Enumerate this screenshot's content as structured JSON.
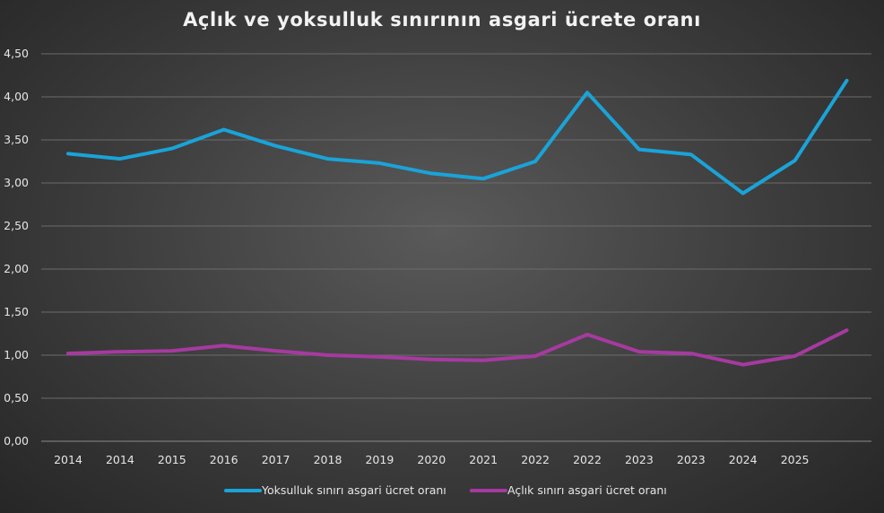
{
  "chart_data": {
    "type": "line",
    "title": "Açlık ve yoksulluk sınırının asgari ücrete oranı",
    "xlabel": "",
    "ylabel": "",
    "ylim": [
      0,
      4.5
    ],
    "y_ticks": [
      "0,00",
      "0,50",
      "1,00",
      "1,50",
      "2,00",
      "2,50",
      "3,00",
      "3,50",
      "4,00",
      "4,50"
    ],
    "categories": [
      "2014",
      "2014",
      "2015",
      "2016",
      "2017",
      "2018",
      "2019",
      "2020",
      "2021",
      "2022",
      "2022",
      "2023",
      "2023",
      "2024",
      "2025",
      ""
    ],
    "grid": true,
    "legend_position": "bottom",
    "series": [
      {
        "name": "Yoksulluk sınırı asgari ücret oranı",
        "color": "#1aa3d8",
        "values": [
          3.34,
          3.28,
          3.4,
          3.62,
          3.43,
          3.28,
          3.23,
          3.11,
          3.05,
          3.25,
          4.05,
          3.39,
          3.33,
          2.88,
          3.26,
          4.19
        ]
      },
      {
        "name": "Açlık sınırı asgari ücret oranı",
        "color": "#a63aa0",
        "values": [
          1.02,
          1.04,
          1.05,
          1.11,
          1.05,
          1.0,
          0.98,
          0.95,
          0.94,
          0.99,
          1.24,
          1.04,
          1.02,
          0.89,
          0.99,
          1.29
        ]
      }
    ]
  }
}
